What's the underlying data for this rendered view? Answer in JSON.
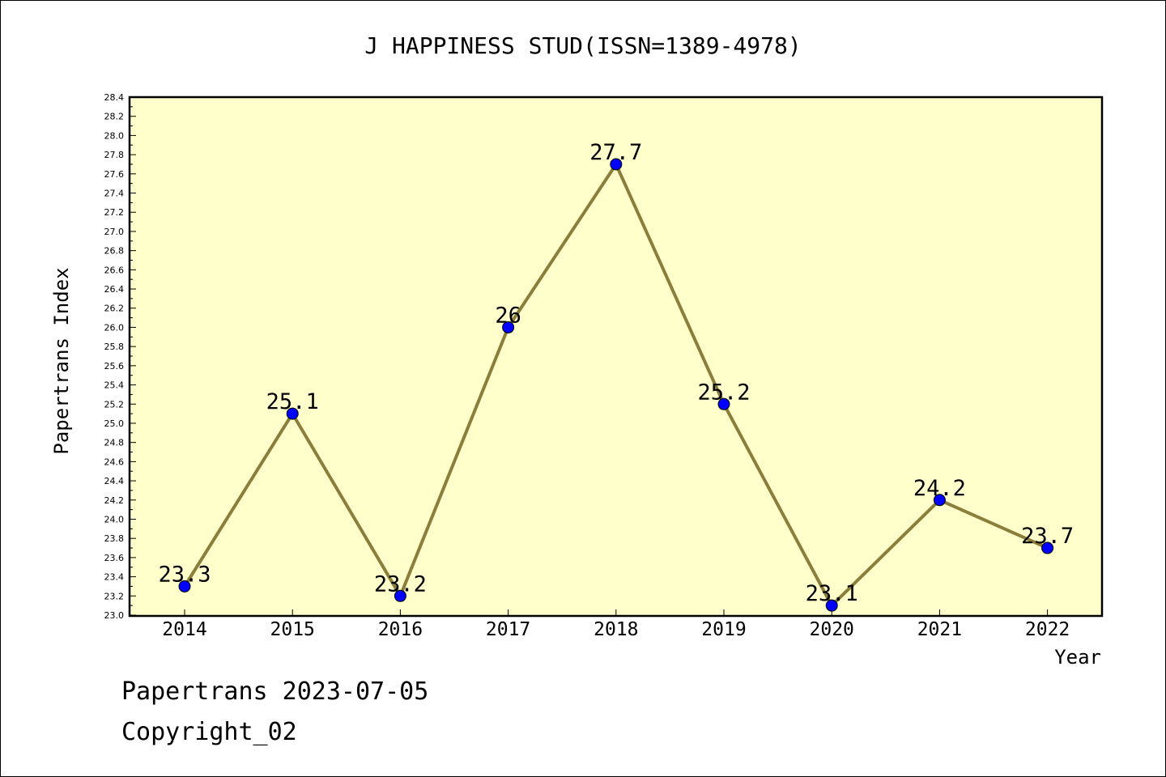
{
  "chart_data": {
    "type": "line",
    "title": "J HAPPINESS STUD(ISSN=1389-4978)",
    "xlabel": "Year",
    "ylabel": "Papertrans Index",
    "categories": [
      "2014",
      "2015",
      "2016",
      "2017",
      "2018",
      "2019",
      "2020",
      "2021",
      "2022"
    ],
    "series": [
      {
        "values": [
          23.3,
          25.1,
          23.2,
          26.0,
          27.7,
          25.2,
          23.1,
          24.2,
          23.7
        ],
        "labels": [
          "23.3",
          "25.1",
          "23.2",
          "26",
          "27.7",
          "25.2",
          "23.1",
          "24.2",
          "23.7"
        ]
      }
    ],
    "ylim": [
      23.0,
      28.4
    ],
    "ytick_step": 0.2,
    "grid": false,
    "legend": "none",
    "colors": {
      "plot_background": "#ffffcc",
      "line": "#8b7d3a",
      "marker": "#0000ff"
    }
  },
  "footer": {
    "line1": "Papertrans 2023-07-05",
    "line2": "Copyright_02"
  }
}
